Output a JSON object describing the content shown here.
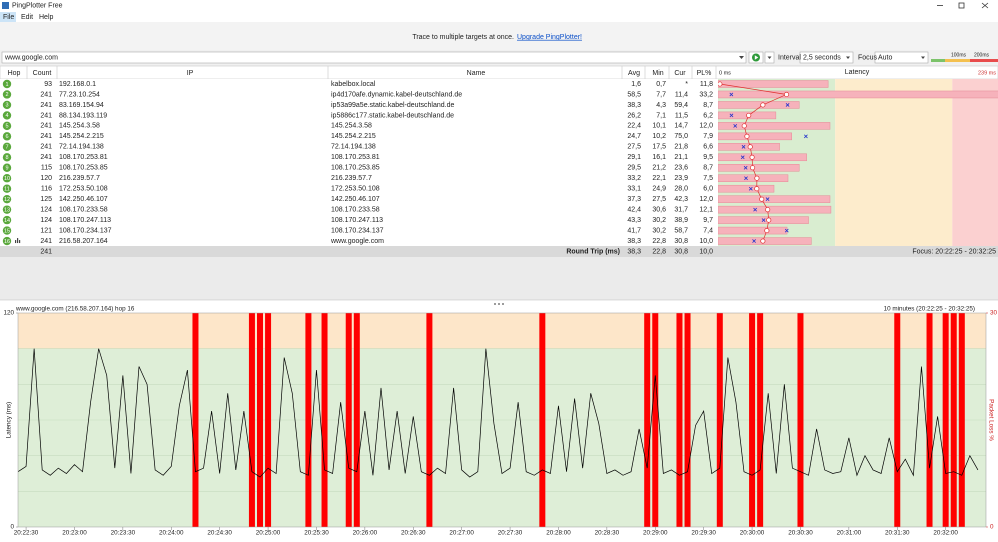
{
  "window": {
    "title": "PingPlotter Free"
  },
  "menu": [
    "File",
    "Edit",
    "Help"
  ],
  "banner": {
    "text": "Trace to multiple targets at once.",
    "link": "Upgrade PingPlotter!"
  },
  "toolbar": {
    "target": "www.google.com",
    "interval_label": "Interval",
    "interval": "2,5 seconds",
    "focus_label": "Focus",
    "focus": "Auto",
    "legend": [
      "100ms",
      "200ms"
    ]
  },
  "table": {
    "columns": [
      "Hop",
      "Count",
      "IP",
      "Name",
      "Avg",
      "Min",
      "Cur",
      "PL%"
    ],
    "latency_min": "0 ms",
    "latency_label": "Latency",
    "latency_max": "239 ms",
    "rows": [
      [
        "1",
        "93",
        "192.168.0.1",
        "kabelbox.local",
        "1,6",
        "0,7",
        "*",
        "11,8"
      ],
      [
        "2",
        "241",
        "77.23.10.254",
        "ip4d170afe.dynamic.kabel-deutschland.de",
        "58,5",
        "7,7",
        "11,4",
        "33,2"
      ],
      [
        "3",
        "241",
        "83.169.154.94",
        "ip53a99a5e.static.kabel-deutschland.de",
        "38,3",
        "4,3",
        "59,4",
        "8,7"
      ],
      [
        "4",
        "241",
        "88.134.193.119",
        "ip5886c177.static.kabel-deutschland.de",
        "26,2",
        "7,1",
        "11,5",
        "6,2"
      ],
      [
        "5",
        "241",
        "145.254.3.58",
        "145.254.3.58",
        "22,4",
        "10,1",
        "14,7",
        "12,0"
      ],
      [
        "6",
        "241",
        "145.254.2.215",
        "145.254.2.215",
        "24,7",
        "10,2",
        "75,0",
        "7,9"
      ],
      [
        "7",
        "241",
        "72.14.194.138",
        "72.14.194.138",
        "27,5",
        "17,5",
        "21,8",
        "6,6"
      ],
      [
        "8",
        "241",
        "108.170.253.81",
        "108.170.253.81",
        "29,1",
        "16,1",
        "21,1",
        "9,5"
      ],
      [
        "9",
        "115",
        "108.170.253.85",
        "108.170.253.85",
        "29,5",
        "21,2",
        "23,6",
        "8,7"
      ],
      [
        "10",
        "120",
        "216.239.57.7",
        "216.239.57.7",
        "33,2",
        "22,1",
        "23,9",
        "7,5"
      ],
      [
        "11",
        "116",
        "172.253.50.108",
        "172.253.50.108",
        "33,1",
        "24,9",
        "28,0",
        "6,0"
      ],
      [
        "12",
        "125",
        "142.250.46.107",
        "142.250.46.107",
        "37,3",
        "27,5",
        "42,3",
        "12,0"
      ],
      [
        "13",
        "124",
        "108.170.233.58",
        "108.170.233.58",
        "42,4",
        "30,6",
        "31,7",
        "12,1"
      ],
      [
        "14",
        "124",
        "108.170.247.113",
        "108.170.247.113",
        "43,3",
        "30,2",
        "38,9",
        "9,7"
      ],
      [
        "15",
        "121",
        "108.170.234.137",
        "108.170.234.137",
        "41,7",
        "30,2",
        "58,7",
        "7,4"
      ],
      [
        "16",
        "241",
        "216.58.207.164",
        "www.google.com",
        "38,3",
        "22,8",
        "30,8",
        "10,0"
      ]
    ],
    "summary": {
      "count": "241",
      "label": "Round Trip (ms)",
      "avg": "38,3",
      "min": "22,8",
      "cur": "30,8",
      "pl": "10,0",
      "focus": "Focus: 20:22:25 - 20:32:25"
    }
  },
  "graph": {
    "type": "line",
    "title": "www.google.com (216.58.207.164) hop 16",
    "range_label": "10 minutes (20:22:25 - 20:32:25)",
    "y_label": "Latency (ms)",
    "y2_label": "Packet Loss %",
    "xlim": [
      "20:22:25",
      "20:32:25"
    ],
    "xticks": [
      "20:22:30",
      "20:23:00",
      "20:23:30",
      "20:24:00",
      "20:24:30",
      "20:25:00",
      "20:25:30",
      "20:26:00",
      "20:26:30",
      "20:27:00",
      "20:27:30",
      "20:28:00",
      "20:28:30",
      "20:29:00",
      "20:29:30",
      "20:30:00",
      "20:30:30",
      "20:31:00",
      "20:31:30",
      "20:32:00"
    ],
    "ylim": [
      0,
      120
    ],
    "yticks": [
      0,
      120
    ],
    "grid_values": [
      20,
      40,
      60,
      80,
      100
    ],
    "y2lim": [
      0,
      30
    ],
    "y2ticks": [
      0,
      30
    ],
    "x": [
      "20:22:25",
      "20:22:30",
      "20:22:35",
      "20:22:40",
      "20:22:45",
      "20:22:50",
      "20:22:55",
      "20:23:00",
      "20:23:05",
      "20:23:10",
      "20:23:15",
      "20:23:20",
      "20:23:25",
      "20:23:30",
      "20:23:35",
      "20:23:40",
      "20:23:45",
      "20:23:50",
      "20:23:55",
      "20:24:00",
      "20:24:05",
      "20:24:10",
      "20:24:15",
      "20:24:20",
      "20:24:25",
      "20:24:30",
      "20:24:35",
      "20:24:40",
      "20:24:45",
      "20:24:50",
      "20:24:55",
      "20:25:00",
      "20:25:05",
      "20:25:10",
      "20:25:15",
      "20:25:20",
      "20:25:25",
      "20:25:30",
      "20:25:35",
      "20:25:40",
      "20:25:45",
      "20:25:50",
      "20:25:55",
      "20:26:00",
      "20:26:05",
      "20:26:10",
      "20:26:15",
      "20:26:20",
      "20:26:25",
      "20:26:30",
      "20:26:35",
      "20:26:40",
      "20:26:45",
      "20:26:50",
      "20:26:55",
      "20:27:00",
      "20:27:05",
      "20:27:10",
      "20:27:15",
      "20:27:20",
      "20:27:25",
      "20:27:30",
      "20:27:35",
      "20:27:40",
      "20:27:45",
      "20:27:50",
      "20:27:55",
      "20:28:00",
      "20:28:05",
      "20:28:10",
      "20:28:15",
      "20:28:20",
      "20:28:25",
      "20:28:30",
      "20:28:35",
      "20:28:40",
      "20:28:45",
      "20:28:50",
      "20:28:55",
      "20:29:00",
      "20:29:05",
      "20:29:10",
      "20:29:15",
      "20:29:20",
      "20:29:25",
      "20:29:30",
      "20:29:35",
      "20:29:40",
      "20:29:45",
      "20:29:50",
      "20:29:55",
      "20:30:00",
      "20:30:05",
      "20:30:10",
      "20:30:15",
      "20:30:20",
      "20:30:25",
      "20:30:30",
      "20:30:35",
      "20:30:40",
      "20:30:45",
      "20:30:50",
      "20:30:55",
      "20:31:00",
      "20:31:05",
      "20:31:10",
      "20:31:15",
      "20:31:20",
      "20:31:25",
      "20:31:30",
      "20:31:35",
      "20:31:40",
      "20:31:45",
      "20:31:50",
      "20:31:55",
      "20:32:00",
      "20:32:05",
      "20:32:10",
      "20:32:15",
      "20:32:20"
    ],
    "values": [
      31,
      34,
      100,
      32,
      29,
      33,
      30,
      35,
      31,
      70,
      100,
      85,
      33,
      85,
      30,
      90,
      80,
      32,
      29,
      34,
      68,
      88,
      31,
      33,
      65,
      30,
      75,
      32,
      65,
      31,
      28,
      33,
      30,
      95,
      75,
      31,
      29,
      88,
      32,
      30,
      70,
      33,
      31,
      65,
      29,
      78,
      32,
      65,
      30,
      62,
      31,
      29,
      33,
      30,
      78,
      32,
      28,
      31,
      100,
      58,
      30,
      33,
      70,
      31,
      29,
      32,
      30,
      68,
      31,
      72,
      33,
      75,
      58,
      30,
      32,
      29,
      31,
      55,
      33,
      85,
      30,
      32,
      29,
      31,
      57,
      65,
      30,
      33,
      95,
      70,
      31,
      29,
      32,
      75,
      30,
      80,
      33,
      31,
      29,
      55,
      32,
      30,
      31,
      50,
      29,
      40,
      32,
      30,
      50,
      31,
      38,
      29,
      90,
      33,
      62,
      30,
      31,
      29,
      40,
      32
    ],
    "color": "#000000",
    "loss": {
      "axis": "y2",
      "color": "#ff0000",
      "x": [
        "20:24:15",
        "20:24:50",
        "20:24:55",
        "20:25:00",
        "20:25:25",
        "20:25:35",
        "20:25:50",
        "20:25:55",
        "20:26:40",
        "20:27:50",
        "20:28:55",
        "20:29:00",
        "20:29:15",
        "20:29:20",
        "20:29:40",
        "20:30:00",
        "20:30:05",
        "20:30:30",
        "20:31:30",
        "20:31:50",
        "20:32:00",
        "20:32:05",
        "20:32:10"
      ],
      "values": [
        100,
        100,
        100,
        100,
        100,
        100,
        100,
        100,
        100,
        100,
        100,
        100,
        100,
        100,
        100,
        100,
        100,
        100,
        100,
        100,
        100,
        100,
        100
      ]
    }
  }
}
